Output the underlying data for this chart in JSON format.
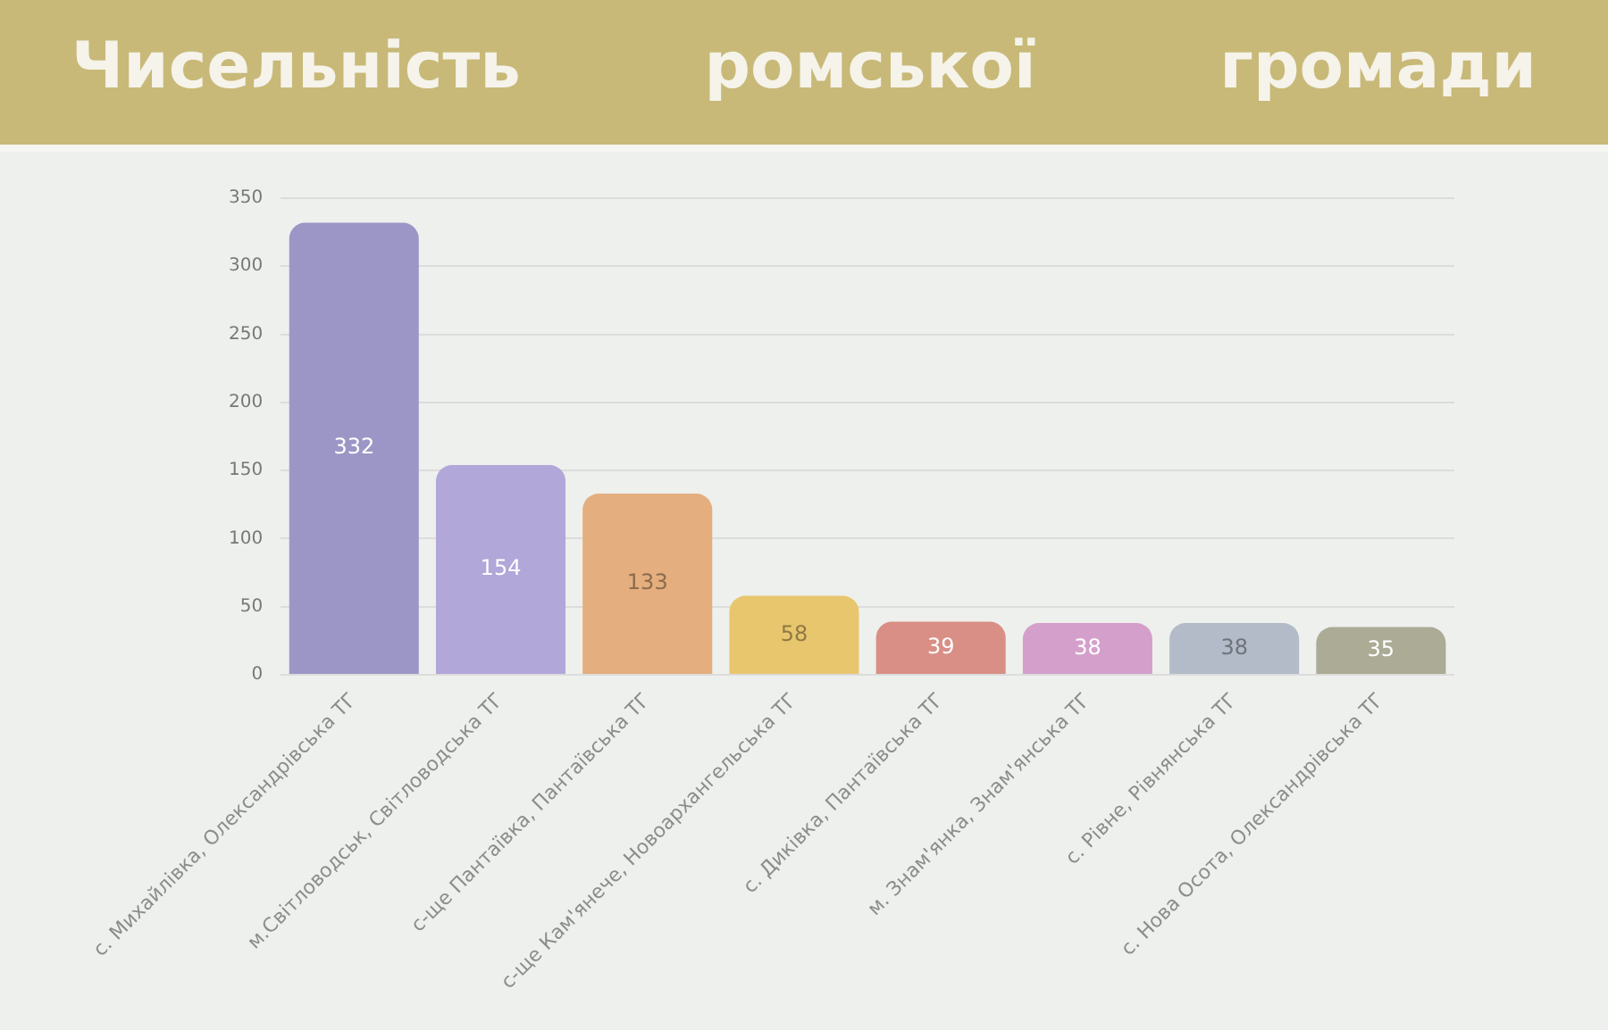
{
  "chart_data": {
    "type": "bar",
    "title": "Чисельність ромської громади",
    "categories": [
      "с. Михайлівка, Олександрівська ТГ",
      "м.Світловодськ, Світловодська ТГ",
      "с-ще Пантаївка, Пантаївська ТГ",
      "с-ще Кам'янече, Новоархангельська ТГ",
      "с. Диківка, Пантаївська ТГ",
      "м. Знам'янка, Знам'янська ТГ",
      "с. Рівне, Рівнянська ТГ",
      "с. Нова Осота, Олександрівська ТГ"
    ],
    "values": [
      332,
      154,
      133,
      58,
      39,
      38,
      38,
      35
    ],
    "colors": [
      "#9c96c6",
      "#b1a7d9",
      "#e4ae7e",
      "#e8c66e",
      "#d98f85",
      "#d4a0cb",
      "#b3bbc9",
      "#abab96"
    ],
    "ylim": [
      0,
      350
    ],
    "yticks": [
      0,
      50,
      100,
      150,
      200,
      250,
      300,
      350
    ],
    "grid": "y",
    "data_labels": true
  }
}
